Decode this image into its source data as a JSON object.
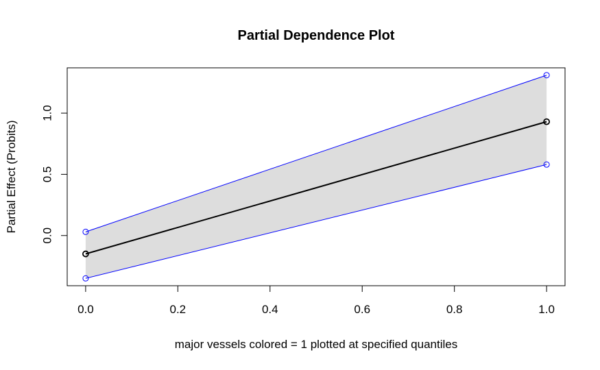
{
  "chart_data": {
    "type": "line",
    "title": "Partial Dependence Plot",
    "xlabel": "major vessels colored = 1 plotted at specified quantiles",
    "ylabel": "Partial Effect (Probits)",
    "x": [
      0.0,
      1.0
    ],
    "series": [
      {
        "values": [
          -0.15,
          0.93
        ],
        "color": "#000000"
      },
      {
        "values": [
          0.03,
          1.31
        ],
        "color": "#0000ff"
      },
      {
        "values": [
          -0.35,
          0.58
        ],
        "color": "#0000ff"
      }
    ],
    "band_color": "#dddddd",
    "xlim": [
      -0.04,
      1.04
    ],
    "ylim": [
      -0.41,
      1.37
    ],
    "xticks": [
      "0.0",
      "0.2",
      "0.4",
      "0.6",
      "0.8",
      "1.0"
    ],
    "yticks": [
      "0.0",
      "0.5",
      "1.0"
    ],
    "grid": false
  }
}
